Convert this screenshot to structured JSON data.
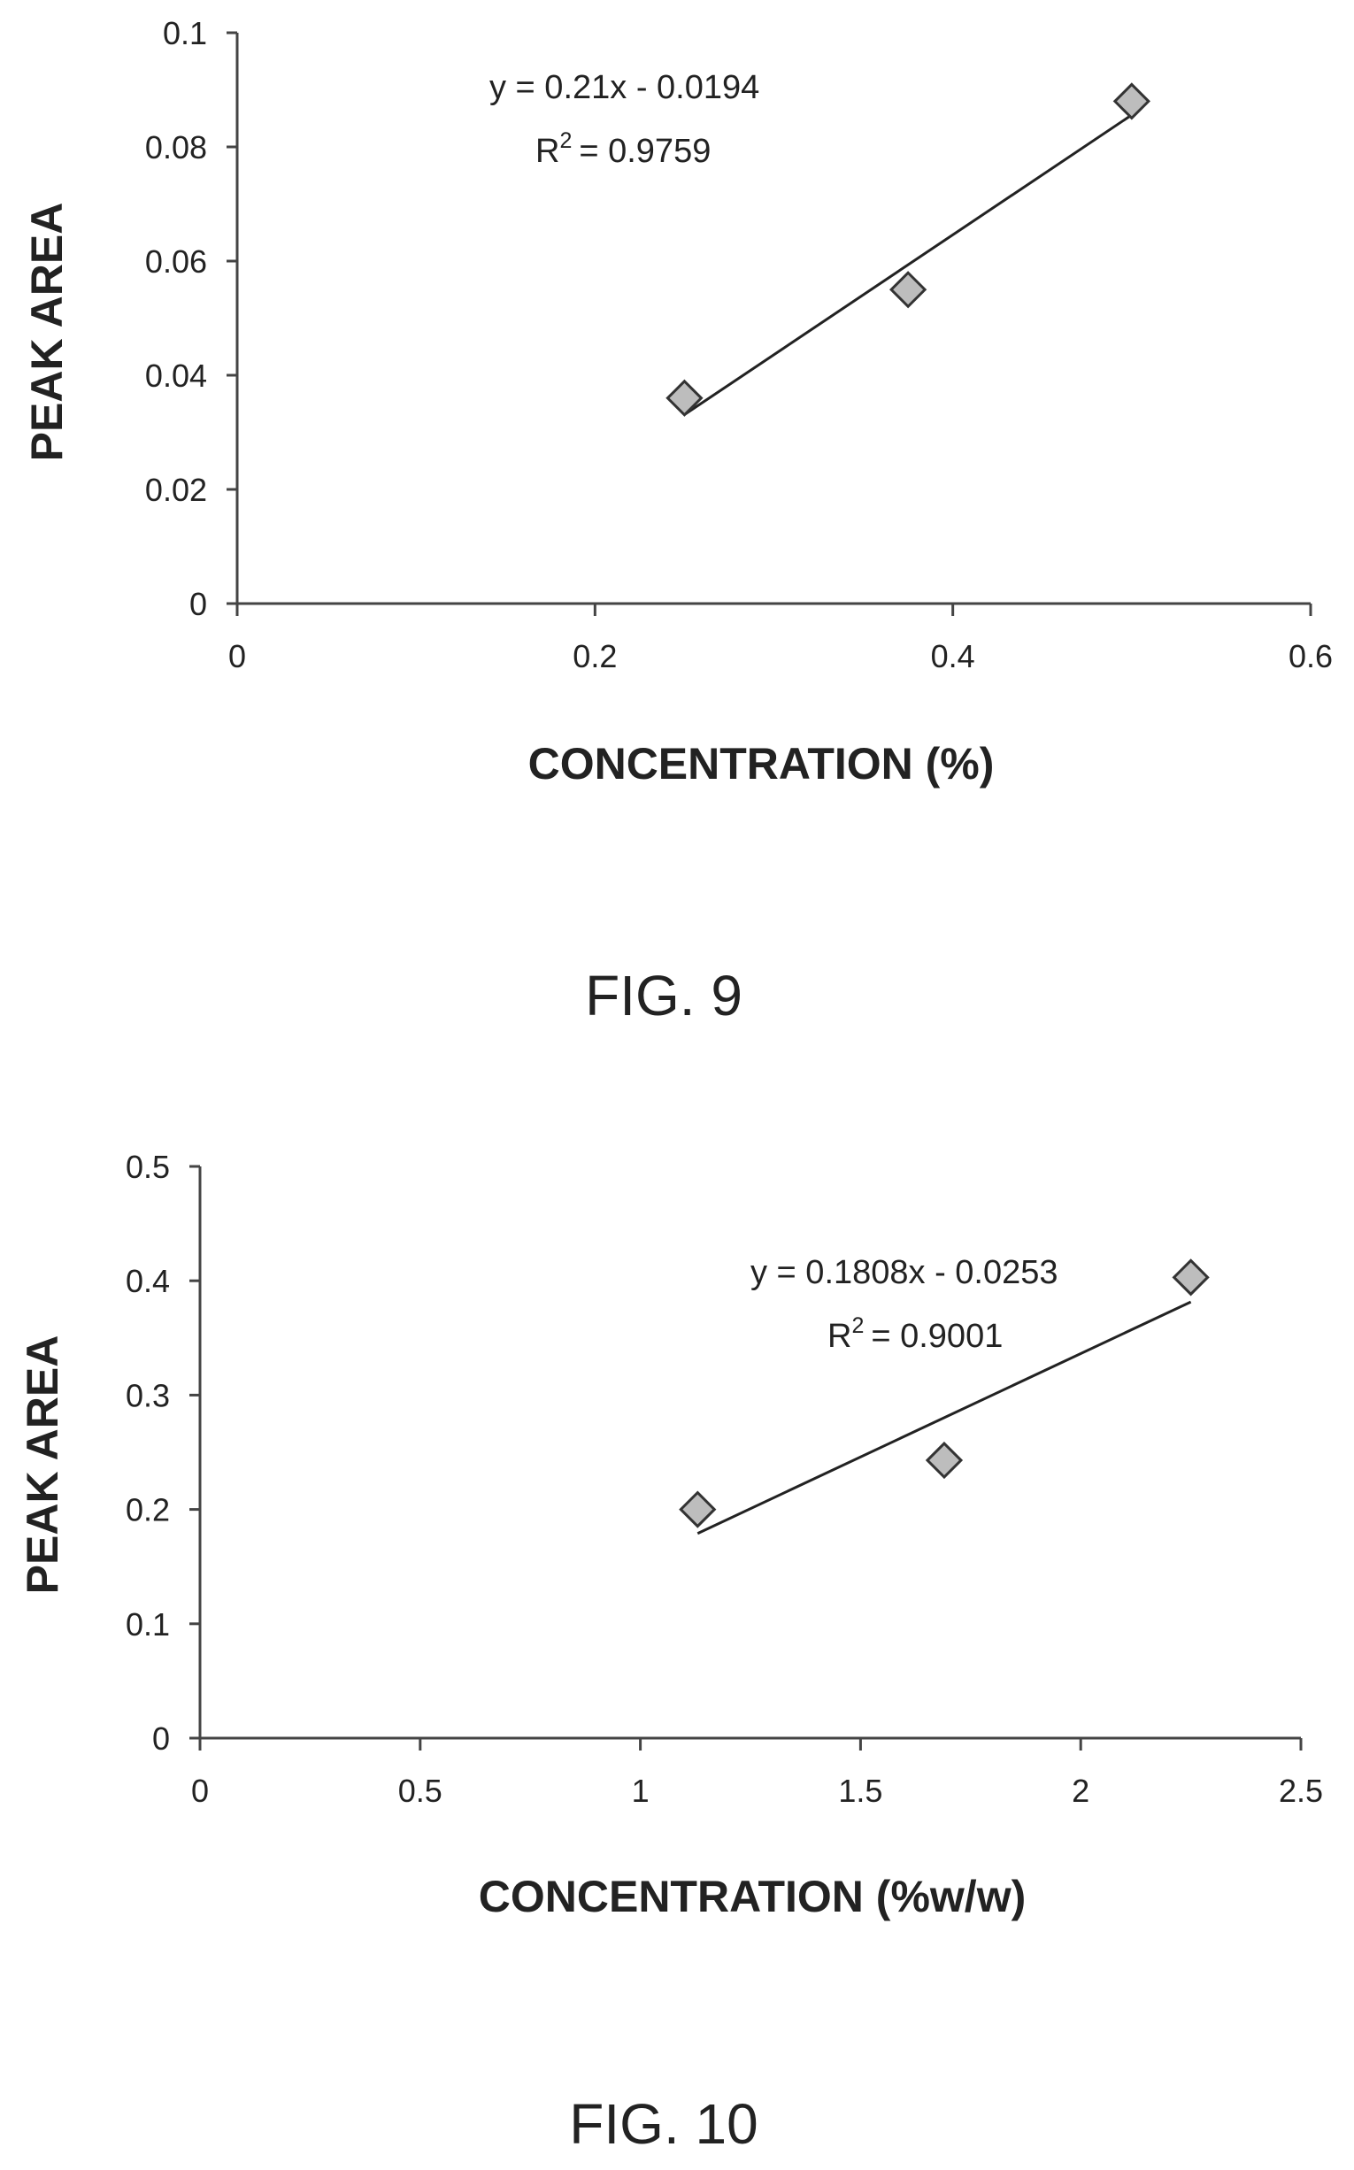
{
  "chart_data": [
    {
      "type": "scatter",
      "figure_label": "FIG. 9",
      "xlabel": "CONCENTRATION (%)",
      "ylabel": "PEAK AREA",
      "xlim": [
        0,
        0.6
      ],
      "ylim": [
        0,
        0.1
      ],
      "xticks": [
        0,
        0.2,
        0.4,
        0.6
      ],
      "xtick_labels": [
        "0",
        "0.2",
        "0.4",
        "0.6"
      ],
      "yticks": [
        0,
        0.02,
        0.04,
        0.06,
        0.08,
        0.1
      ],
      "ytick_labels": [
        "0",
        "0.02",
        "0.04",
        "0.06",
        "0.08",
        "0.1"
      ],
      "grid": false,
      "legend": "none",
      "marker": "diamond",
      "marker_color": "#bdbdbd",
      "x": [
        0.25,
        0.375,
        0.5
      ],
      "y": [
        0.036,
        0.055,
        0.088
      ],
      "trendline": {
        "slope": 0.21,
        "intercept": -0.0194,
        "x_range": [
          0.25,
          0.5
        ]
      },
      "equation": "y = 0.21x - 0.0194",
      "r2_label": "R",
      "r2_sup": "2",
      "r2_value": "= 0.9759"
    },
    {
      "type": "scatter",
      "figure_label": "FIG. 10",
      "xlabel": "CONCENTRATION (%w/w)",
      "ylabel": "PEAK AREA",
      "xlim": [
        0,
        2.5
      ],
      "ylim": [
        0,
        0.5
      ],
      "xticks": [
        0,
        0.5,
        1,
        1.5,
        2,
        2.5
      ],
      "xtick_labels": [
        "0",
        "0.5",
        "1",
        "1.5",
        "2",
        "2.5"
      ],
      "yticks": [
        0,
        0.1,
        0.2,
        0.3,
        0.4,
        0.5
      ],
      "ytick_labels": [
        "0",
        "0.1",
        "0.2",
        "0.3",
        "0.4",
        "0.5"
      ],
      "grid": false,
      "legend": "none",
      "marker": "diamond",
      "marker_color": "#bdbdbd",
      "x": [
        1.13,
        1.69,
        2.25
      ],
      "y": [
        0.2,
        0.243,
        0.403
      ],
      "trendline": {
        "slope": 0.1808,
        "intercept": -0.0253,
        "x_range": [
          1.13,
          2.25
        ]
      },
      "equation": "y = 0.1808x - 0.0253",
      "r2_label": "R",
      "r2_sup": "2",
      "r2_value": "= 0.9001"
    }
  ]
}
